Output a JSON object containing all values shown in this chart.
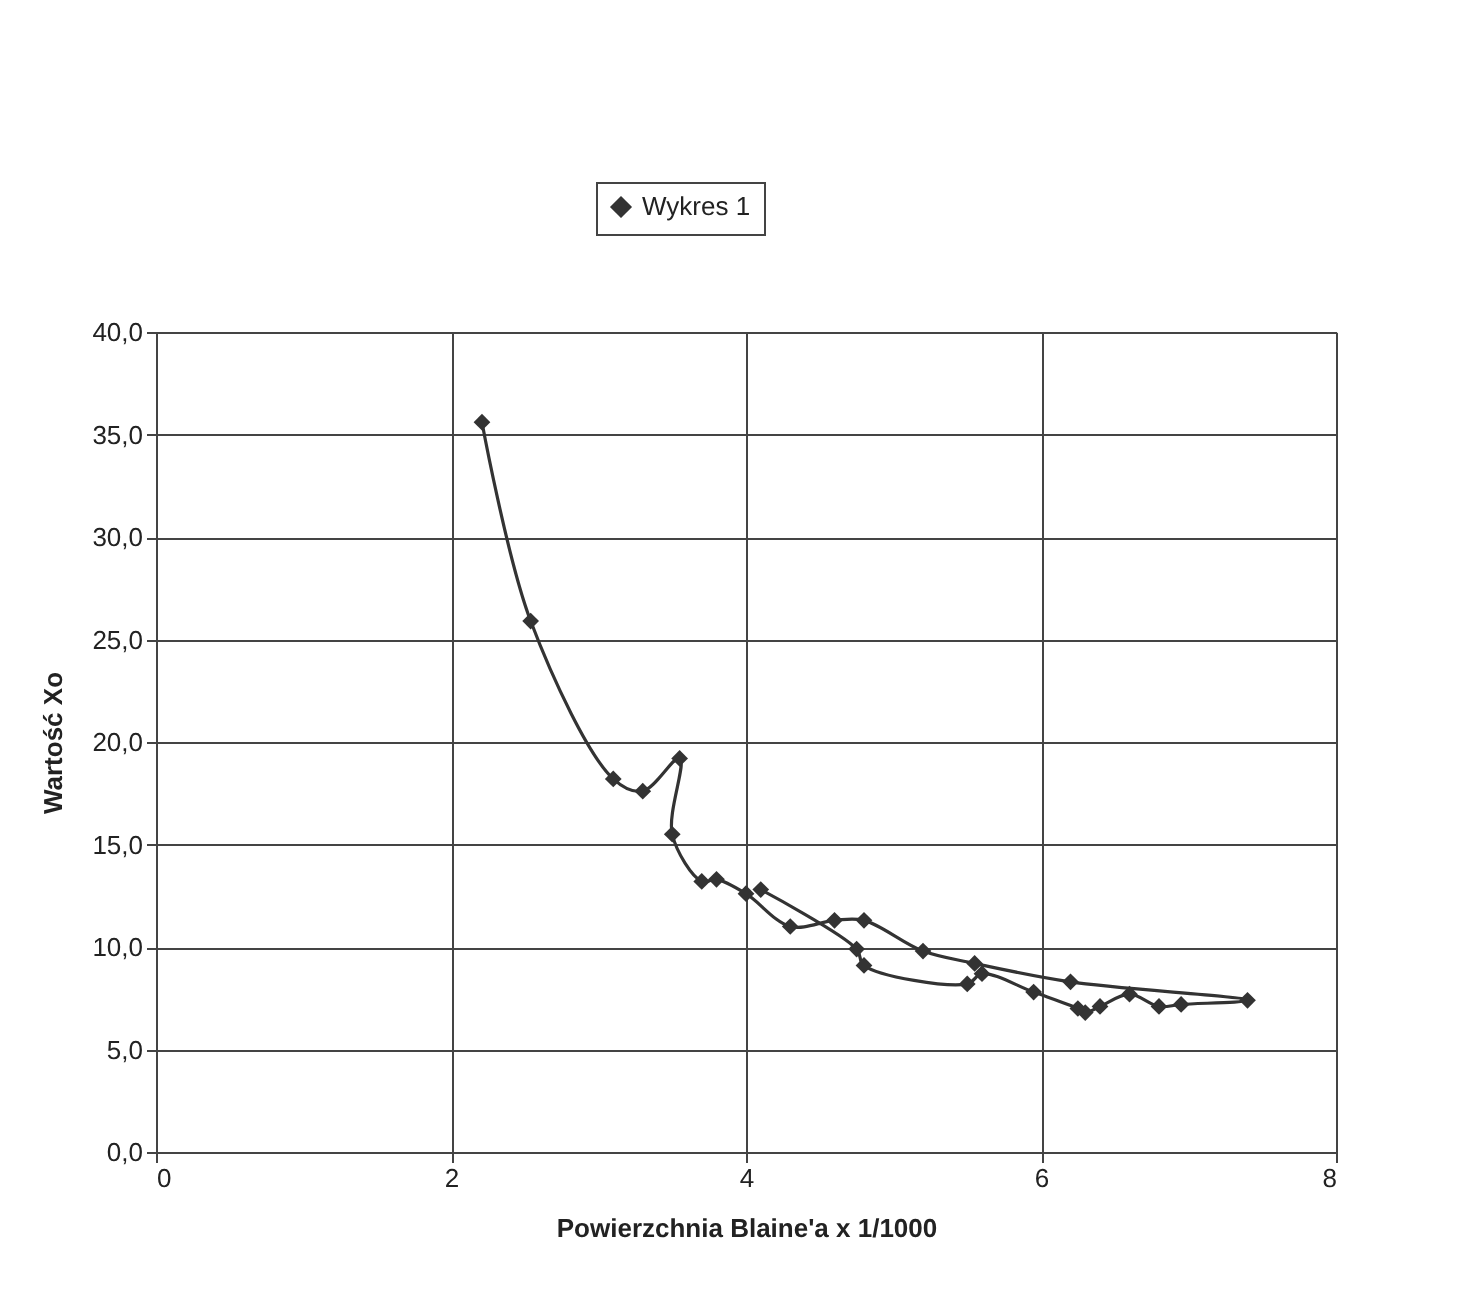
{
  "chart_data": {
    "type": "line",
    "xlabel": "Powierzchnia Blaine'a  x 1/1000",
    "ylabel": "Wartość  Xo",
    "x": [
      2.21,
      2.54,
      3.1,
      3.3,
      3.55,
      3.5,
      3.7,
      3.8,
      4.0,
      4.3,
      4.6,
      4.8,
      5.2,
      5.55,
      6.2,
      7.4,
      6.95,
      6.8,
      6.6,
      6.4,
      6.3,
      6.25,
      5.95,
      5.6,
      5.5,
      4.8,
      4.75,
      4.1
    ],
    "series": [
      {
        "name": "Wykres 1",
        "color": "#333333",
        "values": [
          35.6,
          25.9,
          18.2,
          17.6,
          19.2,
          15.5,
          13.2,
          13.3,
          12.6,
          11.0,
          11.3,
          11.3,
          9.8,
          9.2,
          8.3,
          7.4,
          7.2,
          7.1,
          7.7,
          7.1,
          6.8,
          7.0,
          7.8,
          8.7,
          8.2,
          9.1,
          9.9,
          12.8
        ]
      }
    ],
    "xlim": [
      0,
      8
    ],
    "xticks": [
      0,
      2,
      4,
      6,
      8
    ],
    "ylim": [
      0,
      40
    ],
    "yticks": [
      {
        "value": 0,
        "label": "0,0"
      },
      {
        "value": 5,
        "label": "5,0"
      },
      {
        "value": 10,
        "label": "10,0"
      },
      {
        "value": 15,
        "label": "15,0"
      },
      {
        "value": 20,
        "label": "20,0"
      },
      {
        "value": 25,
        "label": "25,0"
      },
      {
        "value": 30,
        "label": "30,0"
      },
      {
        "value": 35,
        "label": "35,0"
      },
      {
        "value": 40,
        "label": "40,0"
      }
    ],
    "grid": true,
    "legend": "top",
    "marker": "diamond",
    "line_style": "solid"
  }
}
